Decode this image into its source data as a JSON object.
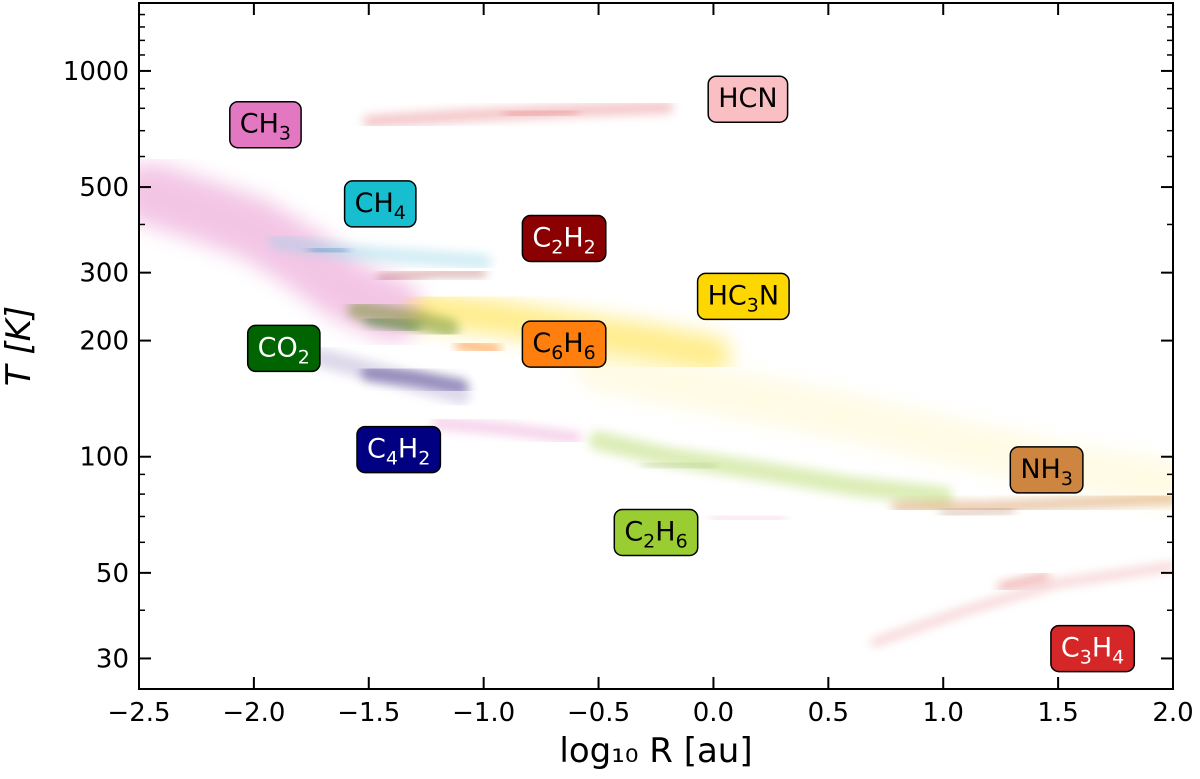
{
  "chart_data": {
    "type": "heatmap",
    "xlabel": "log₁₀ R [au]",
    "ylabel": "T [K]",
    "xlim": [
      -2.5,
      2.0
    ],
    "ylim": [
      25,
      1500
    ],
    "yscale": "log",
    "grid": false,
    "x_ticks": [
      -2.5,
      -2.0,
      -1.5,
      -1.0,
      -0.5,
      0.0,
      0.5,
      1.0,
      1.5,
      2.0
    ],
    "x_tick_labels": [
      "−2.5",
      "−2.0",
      "−1.5",
      "−1.0",
      "−0.5",
      "0.0",
      "0.5",
      "1.0",
      "1.5",
      "2.0"
    ],
    "y_ticks": [
      30,
      50,
      100,
      200,
      300,
      500,
      1000
    ],
    "y_tick_labels": [
      "30",
      "50",
      "100",
      "200",
      "300",
      "500",
      "1000"
    ],
    "y_minor_ticks": [
      40,
      60,
      70,
      80,
      90,
      400,
      600,
      700,
      800,
      900,
      1100,
      1200,
      1300,
      1400
    ],
    "labels": [
      {
        "species": "HCN",
        "base": "HCN",
        "sub": "",
        "tail": "",
        "label_x": 0.15,
        "label_y": 850,
        "color": "#f9bfc2",
        "text_color": "#000000"
      },
      {
        "species": "CH₃",
        "base": "CH",
        "sub": "3",
        "tail": "",
        "label_x": -1.95,
        "label_y": 730,
        "color": "#e377c2",
        "text_color": "#000000"
      },
      {
        "species": "CH₄",
        "base": "CH",
        "sub": "4",
        "tail": "",
        "label_x": -1.45,
        "label_y": 455,
        "color": "#17becf",
        "text_color": "#000000"
      },
      {
        "species": "C₂H₂",
        "base": "C",
        "sub": "2",
        "tail": "H2",
        "label_x": -0.65,
        "label_y": 370,
        "color": "#8b0000",
        "text_color": "#ffffff"
      },
      {
        "species": "HC₃N",
        "base": "HC",
        "sub": "3",
        "tail": "N",
        "label_x": 0.13,
        "label_y": 262,
        "color": "#ffd700",
        "text_color": "#000000"
      },
      {
        "species": "C₆H₆",
        "base": "C",
        "sub": "6",
        "tail": "H6",
        "label_x": -0.65,
        "label_y": 197,
        "color": "#ff7f0e",
        "text_color": "#000000"
      },
      {
        "species": "CO₂",
        "base": "CO",
        "sub": "2",
        "tail": "",
        "label_x": -1.87,
        "label_y": 192,
        "color": "#006400",
        "text_color": "#ffffff"
      },
      {
        "species": "C₄H₂",
        "base": "C",
        "sub": "4",
        "tail": "H2",
        "label_x": -1.37,
        "label_y": 105,
        "color": "#000080",
        "text_color": "#ffffff"
      },
      {
        "species": "NH₃",
        "base": "NH",
        "sub": "3",
        "tail": "",
        "label_x": 1.45,
        "label_y": 93,
        "color": "#cd853f",
        "text_color": "#000000"
      },
      {
        "species": "C₂H₆",
        "base": "C",
        "sub": "2",
        "tail": "H6",
        "label_x": -0.25,
        "label_y": 64,
        "color": "#9acd32",
        "text_color": "#000000"
      },
      {
        "species": "C₃H₄",
        "base": "C",
        "sub": "3",
        "tail": "H4",
        "label_x": 1.65,
        "label_y": 32,
        "color": "#d62728",
        "text_color": "#ffffff"
      }
    ],
    "distributions": [
      {
        "species": "CH₃",
        "color": "#e377c2",
        "points": [
          [
            -2.45,
            480
          ],
          [
            -2.2,
            430
          ],
          [
            -2.0,
            390
          ],
          [
            -1.8,
            330
          ],
          [
            -1.6,
            270
          ],
          [
            -1.4,
            240
          ]
        ],
        "log_width": 0.16,
        "opacity": 0.42
      },
      {
        "species": "CH₃",
        "color": "#e377c2",
        "points": [
          [
            -1.2,
            122
          ],
          [
            -0.9,
            118
          ],
          [
            -0.6,
            112
          ]
        ],
        "log_width": 0.03,
        "opacity": 0.35
      },
      {
        "species": "CH₃",
        "color": "#e377c2",
        "points": [
          [
            0.0,
            70
          ],
          [
            0.3,
            69
          ]
        ],
        "log_width": 0.02,
        "opacity": 0.25
      },
      {
        "species": "HCN",
        "color": "#e8878c",
        "points": [
          [
            -1.5,
            740
          ],
          [
            -1.1,
            765
          ],
          [
            -0.6,
            790
          ],
          [
            -0.2,
            805
          ]
        ],
        "log_width": 0.03,
        "opacity": 0.5
      },
      {
        "species": "HCN",
        "color": "#d62728",
        "points": [
          [
            -0.9,
            770
          ],
          [
            -0.6,
            785
          ]
        ],
        "log_width": 0.015,
        "opacity": 0.35
      },
      {
        "species": "CH₄",
        "color": "#8fd3e6",
        "points": [
          [
            -1.9,
            360
          ],
          [
            -1.6,
            340
          ],
          [
            -1.3,
            330
          ],
          [
            -1.0,
            320
          ]
        ],
        "log_width": 0.04,
        "opacity": 0.4
      },
      {
        "species": "CH₄",
        "color": "#1f77b4",
        "points": [
          [
            -1.75,
            345
          ],
          [
            -1.6,
            340
          ]
        ],
        "log_width": 0.015,
        "opacity": 0.6
      },
      {
        "species": "C₂H₂",
        "color": "#8b0000",
        "points": [
          [
            -1.45,
            290
          ],
          [
            -1.2,
            300
          ],
          [
            -1.0,
            300
          ]
        ],
        "log_width": 0.015,
        "opacity": 0.45
      },
      {
        "species": "HC₃N",
        "color": "#ffd700",
        "points": [
          [
            -1.25,
            240
          ],
          [
            -0.95,
            230
          ],
          [
            -0.65,
            215
          ],
          [
            -0.3,
            200
          ],
          [
            0.0,
            185
          ]
        ],
        "log_width": 0.09,
        "opacity": 0.45
      },
      {
        "species": "HC₃N",
        "color": "#ffd700",
        "points": [
          [
            -0.5,
            170
          ],
          [
            0.5,
            130
          ],
          [
            1.5,
            95
          ],
          [
            2.0,
            85
          ]
        ],
        "log_width": 0.12,
        "opacity": 0.1
      },
      {
        "species": "C₆H₆",
        "color": "#ff7f0e",
        "points": [
          [
            -1.1,
            195
          ],
          [
            -0.95,
            190
          ]
        ],
        "log_width": 0.03,
        "opacity": 0.55
      },
      {
        "species": "CO₂",
        "color": "#6b8e23",
        "points": [
          [
            -1.55,
            240
          ],
          [
            -1.35,
            230
          ],
          [
            -1.15,
            215
          ]
        ],
        "log_width": 0.05,
        "opacity": 0.5
      },
      {
        "species": "CO₂",
        "color": "#006400",
        "points": [
          [
            -1.5,
            225
          ],
          [
            -1.3,
            215
          ]
        ],
        "log_width": 0.025,
        "opacity": 0.4
      },
      {
        "species": "C₄H₂",
        "color": "#3b2e80",
        "points": [
          [
            -1.5,
            165
          ],
          [
            -1.3,
            160
          ],
          [
            -1.1,
            152
          ]
        ],
        "log_width": 0.04,
        "opacity": 0.5
      },
      {
        "species": "C₄H₂",
        "color": "#7b68ae",
        "points": [
          [
            -1.7,
            180
          ],
          [
            -1.1,
            145
          ]
        ],
        "log_width": 0.05,
        "opacity": 0.25
      },
      {
        "species": "C₂H₆",
        "color": "#9acd32",
        "points": [
          [
            -0.5,
            110
          ],
          [
            -0.2,
            100
          ],
          [
            0.2,
            92
          ],
          [
            0.6,
            84
          ],
          [
            1.0,
            79
          ]
        ],
        "log_width": 0.05,
        "opacity": 0.35
      },
      {
        "species": "C₂H₆",
        "color": "#6b8e23",
        "points": [
          [
            -0.3,
            96
          ],
          [
            0.0,
            94
          ]
        ],
        "log_width": 0.015,
        "opacity": 0.3
      },
      {
        "species": "NH₃",
        "color": "#cd853f",
        "points": [
          [
            0.8,
            74
          ],
          [
            1.2,
            74
          ],
          [
            1.6,
            76
          ],
          [
            2.0,
            78
          ]
        ],
        "log_width": 0.03,
        "opacity": 0.45
      },
      {
        "species": "NH₃",
        "color": "#a0522d",
        "points": [
          [
            1.0,
            71
          ],
          [
            1.3,
            73
          ]
        ],
        "log_width": 0.015,
        "opacity": 0.45
      },
      {
        "species": "C₃H₄",
        "color": "#e8878c",
        "points": [
          [
            0.7,
            33
          ],
          [
            1.1,
            40
          ],
          [
            1.5,
            47
          ],
          [
            2.0,
            52
          ]
        ],
        "log_width": 0.02,
        "opacity": 0.4
      },
      {
        "species": "C₃H₄",
        "color": "#d62728",
        "points": [
          [
            1.25,
            46
          ],
          [
            1.45,
            49
          ]
        ],
        "log_width": 0.015,
        "opacity": 0.5
      }
    ]
  }
}
